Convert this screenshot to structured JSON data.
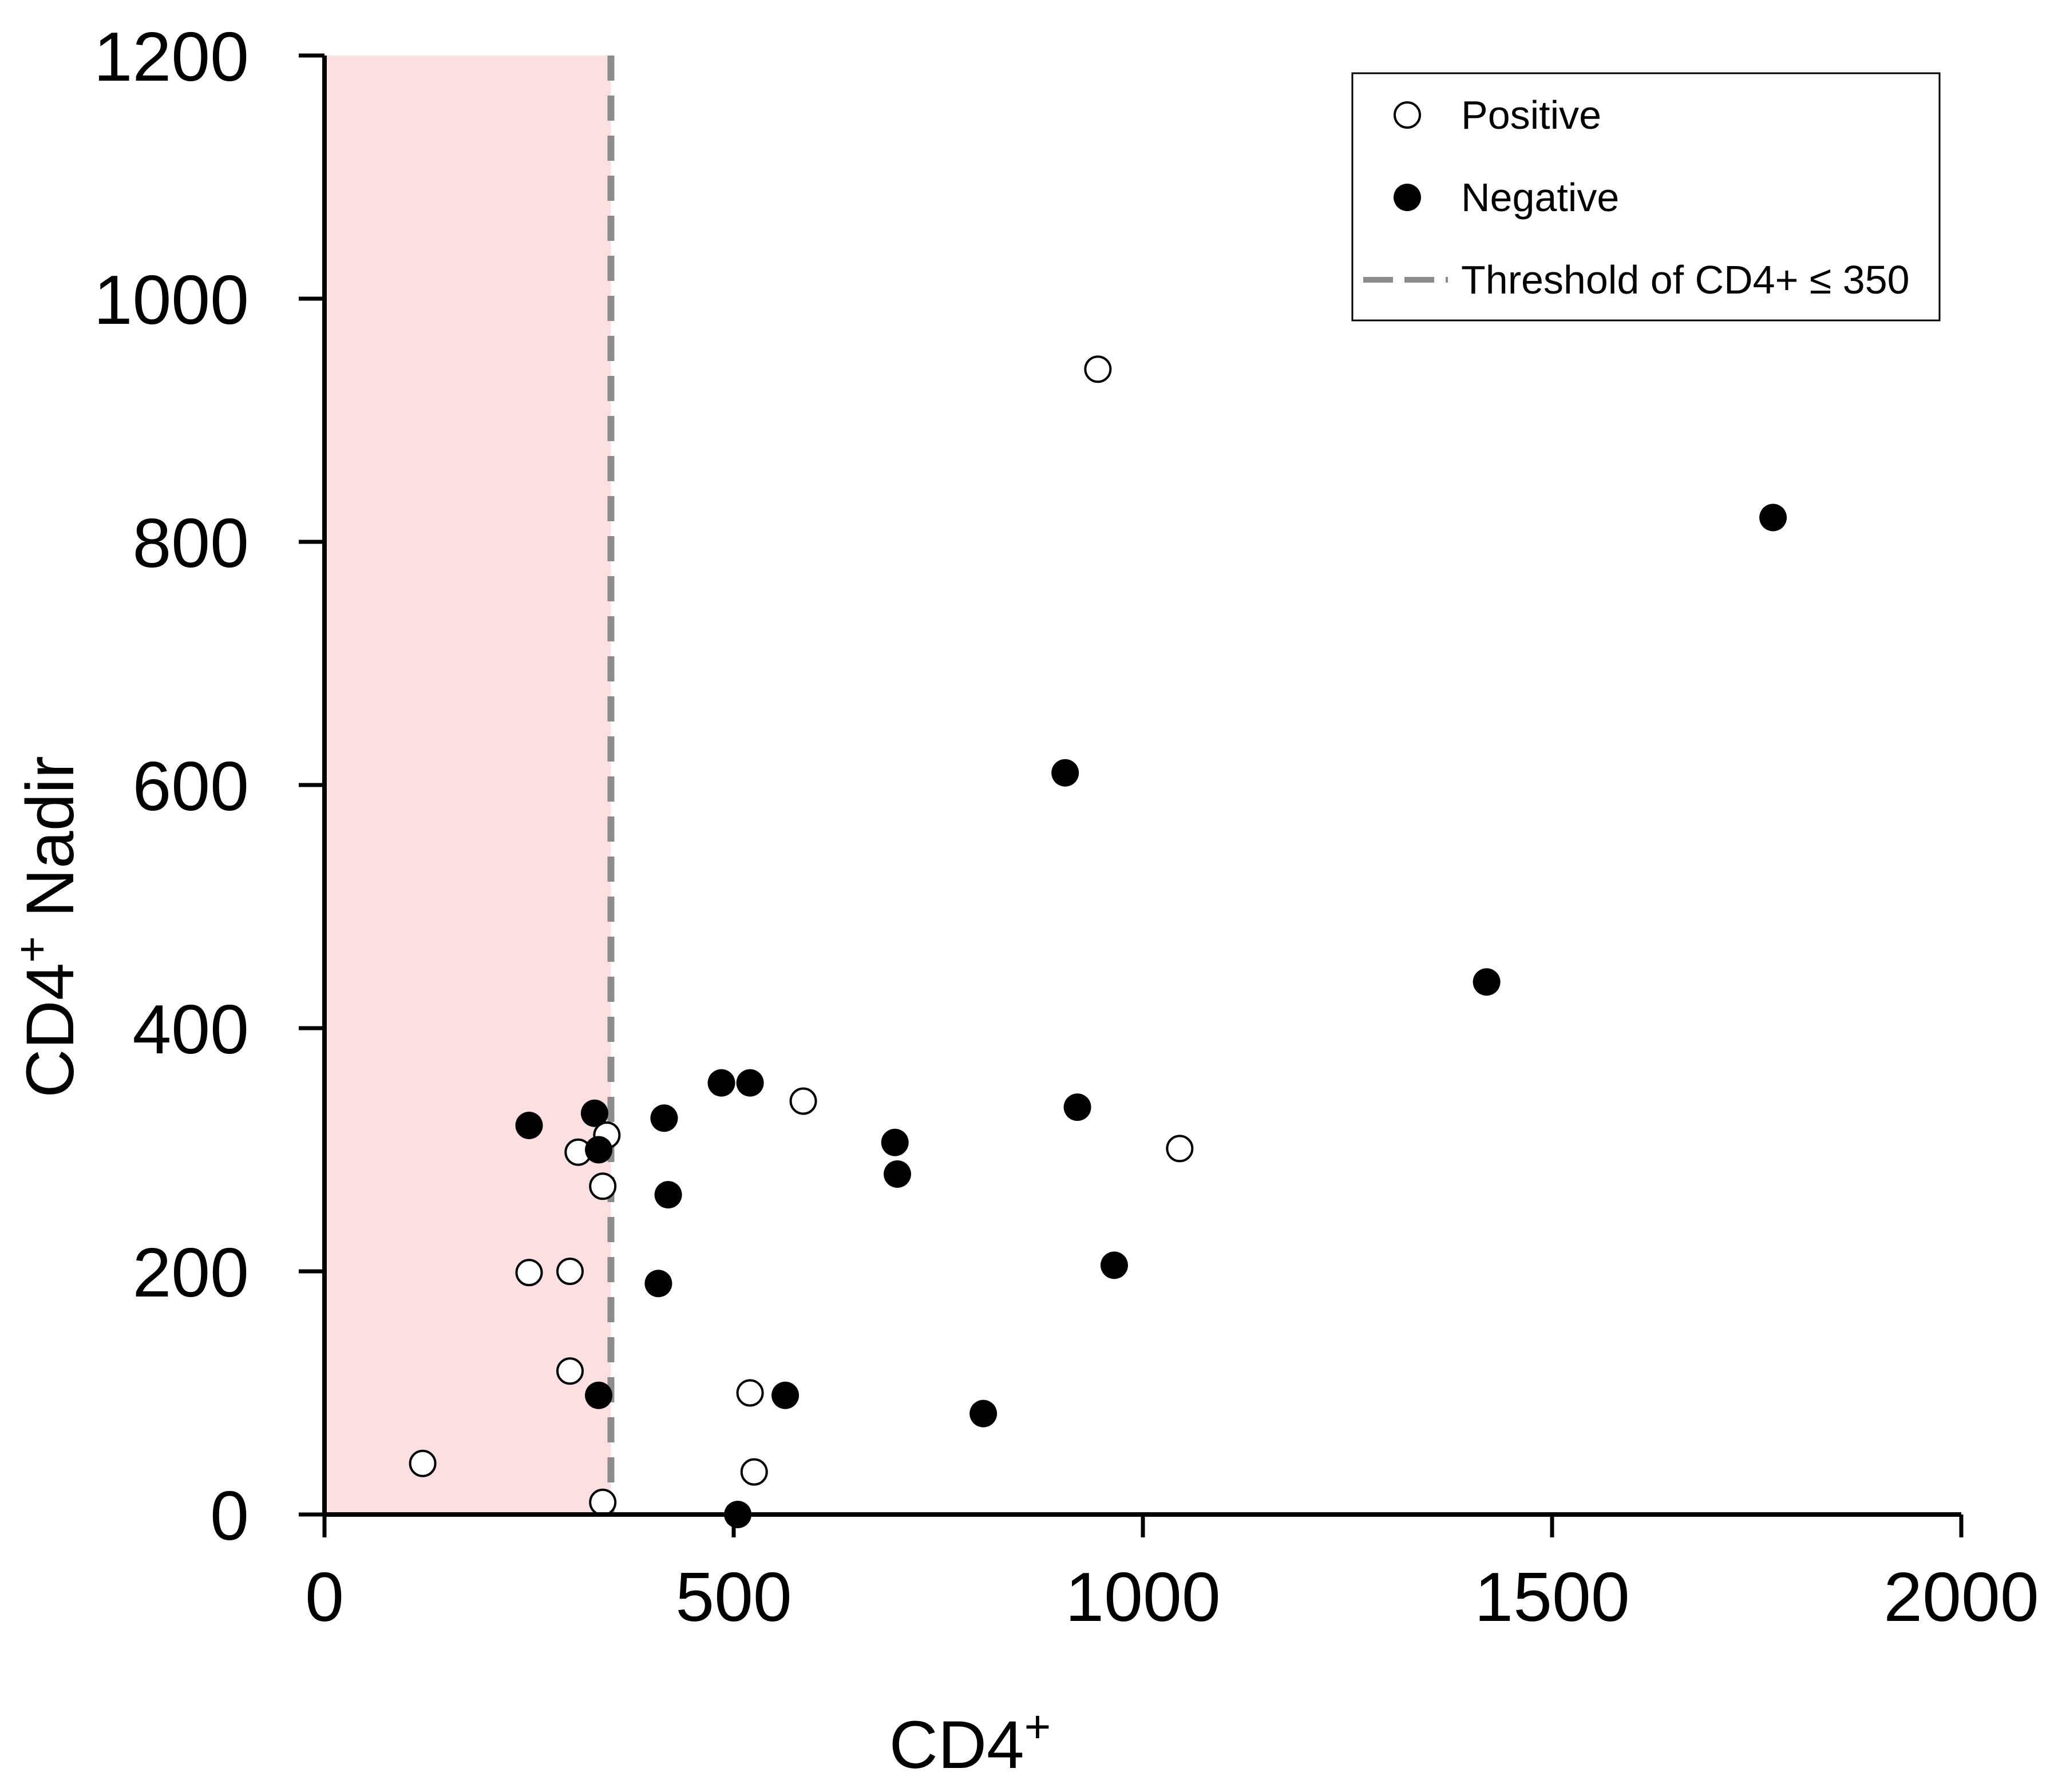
{
  "chart_data": {
    "type": "scatter",
    "title": "",
    "xlabel": "CD4",
    "xlabel_sup": "+",
    "ylabel": "CD4",
    "ylabel_sup": "+",
    "ylabel_suffix": " Nadir",
    "xlim": [
      0,
      2000
    ],
    "ylim": [
      0,
      1200
    ],
    "xticks": [
      0,
      500,
      1000,
      1500,
      2000
    ],
    "yticks": [
      0,
      200,
      400,
      600,
      800,
      1000,
      1200
    ],
    "grid": false,
    "legend_position": "top-right",
    "threshold": {
      "label": "Threshold of CD4+ ≤ 350",
      "x": 350,
      "line_color": "#8c8c8c",
      "shade_color": "#fce0e1"
    },
    "series": [
      {
        "name": "Positive",
        "marker": "open-circle",
        "color": "#000000",
        "points": [
          {
            "x": 945,
            "y": 942
          },
          {
            "x": 585,
            "y": 340
          },
          {
            "x": 1045,
            "y": 301
          },
          {
            "x": 345,
            "y": 312
          },
          {
            "x": 310,
            "y": 298
          },
          {
            "x": 340,
            "y": 270
          },
          {
            "x": 250,
            "y": 199
          },
          {
            "x": 300,
            "y": 200
          },
          {
            "x": 300,
            "y": 118
          },
          {
            "x": 520,
            "y": 100
          },
          {
            "x": 120,
            "y": 42
          },
          {
            "x": 525,
            "y": 35
          },
          {
            "x": 340,
            "y": 10
          }
        ]
      },
      {
        "name": "Negative",
        "marker": "filled-circle",
        "color": "#000000",
        "points": [
          {
            "x": 1770,
            "y": 820
          },
          {
            "x": 905,
            "y": 610
          },
          {
            "x": 1420,
            "y": 438
          },
          {
            "x": 485,
            "y": 355
          },
          {
            "x": 520,
            "y": 355
          },
          {
            "x": 920,
            "y": 335
          },
          {
            "x": 330,
            "y": 330
          },
          {
            "x": 415,
            "y": 326
          },
          {
            "x": 250,
            "y": 320
          },
          {
            "x": 697,
            "y": 306
          },
          {
            "x": 335,
            "y": 300
          },
          {
            "x": 700,
            "y": 280
          },
          {
            "x": 420,
            "y": 263
          },
          {
            "x": 965,
            "y": 205
          },
          {
            "x": 408,
            "y": 190
          },
          {
            "x": 335,
            "y": 98
          },
          {
            "x": 563,
            "y": 98
          },
          {
            "x": 805,
            "y": 83
          },
          {
            "x": 505,
            "y": 0
          }
        ]
      }
    ]
  }
}
